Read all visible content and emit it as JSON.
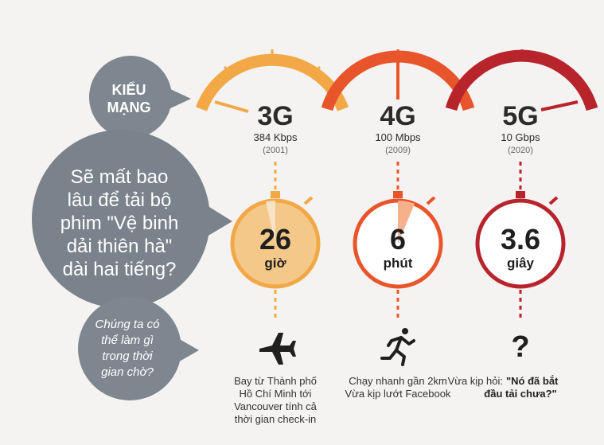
{
  "colors": {
    "g3": "#f2a847",
    "g4": "#e9552b",
    "g5": "#b8242c",
    "g3_fill": "#f3c888",
    "g4_wedge": "#f6b08c",
    "bubble": "#7e878f",
    "bubble_big": "#7a838b"
  },
  "bubbles": {
    "type_line1": "KIỂU",
    "type_line2": "MẠNG",
    "question_lines": [
      "Sẽ mất bao",
      "lâu để tải bộ",
      "phim \"Vệ binh",
      "dải thiên hà\"",
      "dài hai tiếng?"
    ],
    "wait_lines": [
      "Chúng ta có",
      "thể làm gì",
      "trong thời",
      "gian chờ?"
    ]
  },
  "networks": [
    {
      "generation": "3G",
      "speed": "384 Kbps",
      "year": "(2001)",
      "time_value": "26",
      "time_unit": "giờ",
      "activity_icon": "airplane-icon",
      "caption_lines": [
        "Bay từ Thành phố",
        "Hồ Chí Minh tới",
        "Vancouver tính cả",
        "thời gian check-in"
      ],
      "caption_bold": ""
    },
    {
      "generation": "4G",
      "speed": "100 Mbps",
      "year": "(2009)",
      "time_value": "6",
      "time_unit": "phút",
      "activity_icon": "runner-icon",
      "caption_lines": [
        "Chạy nhanh gần 2km",
        "Vừa kịp lướt Facebook"
      ],
      "caption_bold": ""
    },
    {
      "generation": "5G",
      "speed": "10 Gbps",
      "year": "(2020)",
      "time_value": "3.6",
      "time_unit": "giây",
      "activity_icon": "question-icon",
      "activity_glyph": "?",
      "caption_lines": [
        "Vừa kịp hỏi:"
      ],
      "caption_bold_lines": [
        "\"Nó đã bắt",
        "đầu tải chưa?\""
      ]
    }
  ]
}
